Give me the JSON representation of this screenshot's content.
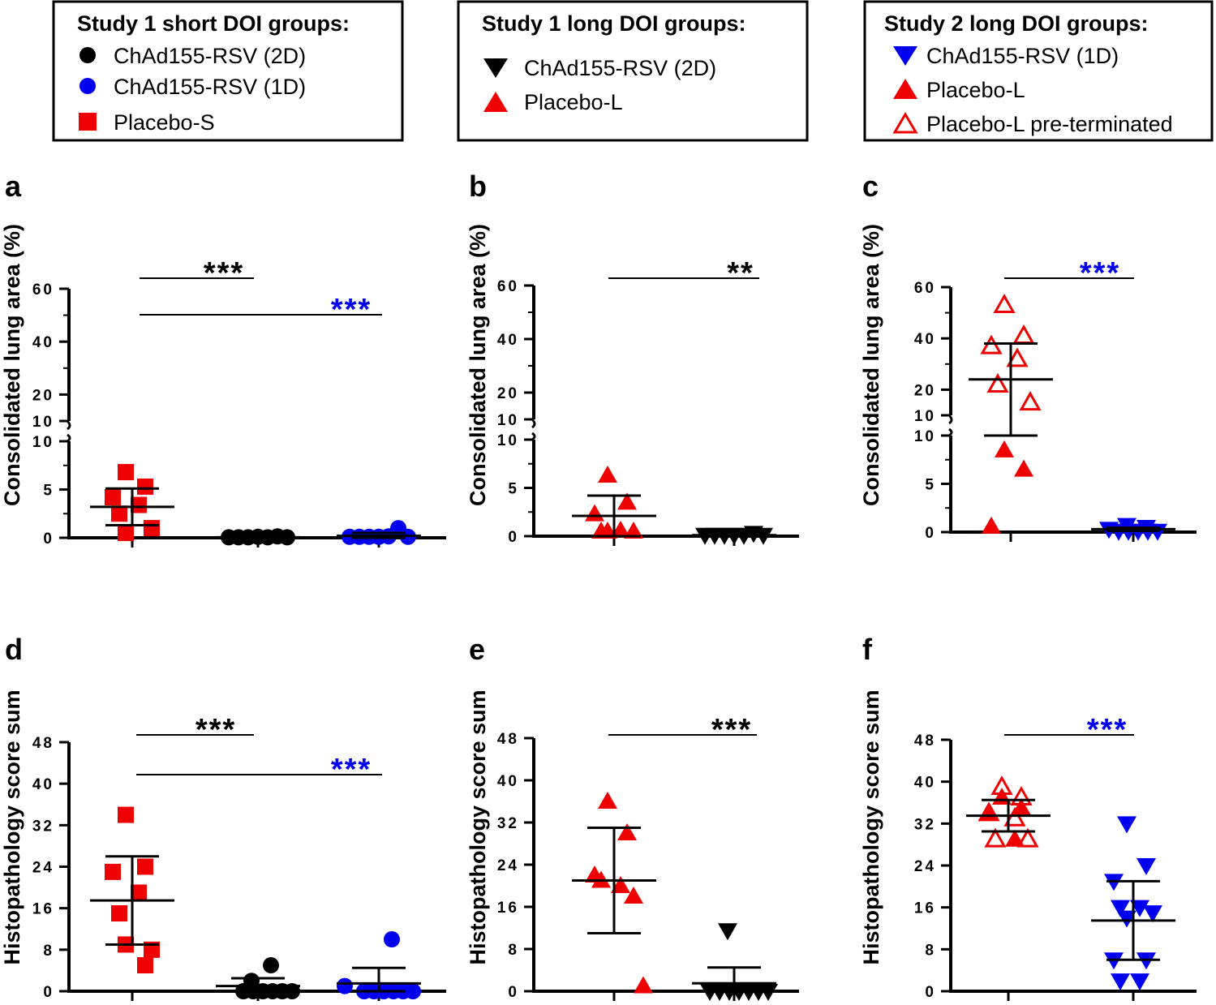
{
  "colors": {
    "red": "#ee0000",
    "blue": "#0000ee",
    "black": "#000000"
  },
  "legends": [
    {
      "title": "Study 1 short DOI groups:",
      "items": [
        {
          "label": "ChAd155-RSV (2D)",
          "marker": "circle",
          "color": "#000000"
        },
        {
          "label": "ChAd155-RSV (1D)",
          "marker": "circle",
          "color": "#0000ee"
        },
        {
          "label": "Placebo-S",
          "marker": "square",
          "color": "#ee0000"
        }
      ]
    },
    {
      "title": "Study 1 long DOI groups:",
      "items": [
        {
          "label": "ChAd155-RSV (2D)",
          "marker": "triangle-down",
          "color": "#000000"
        },
        {
          "label": "Placebo-L",
          "marker": "triangle-up",
          "color": "#ee0000"
        }
      ]
    },
    {
      "title": "Study 2 long DOI groups:",
      "items": [
        {
          "label": "ChAd155-RSV (1D)",
          "marker": "triangle-down",
          "color": "#0000ee"
        },
        {
          "label": "Placebo-L",
          "marker": "triangle-up",
          "color": "#ee0000"
        },
        {
          "label": "Placebo-L pre-terminated",
          "marker": "triangle-up-open",
          "color": "#ee0000"
        }
      ]
    }
  ],
  "chart_data": [
    {
      "panel": "a",
      "type": "scatter",
      "ylabel": "Consolidated lung area (%)",
      "broken_axis": true,
      "lower_range": [
        0,
        10
      ],
      "upper_range": [
        10,
        60
      ],
      "lower_ticks": [
        "0",
        "5",
        "10"
      ],
      "upper_ticks": [
        "10",
        "20",
        "40",
        "60"
      ],
      "lower_tick_values": [
        0,
        5,
        10
      ],
      "upper_tick_values": [
        10,
        20,
        40,
        60
      ],
      "groups": [
        {
          "name": "Placebo-S",
          "marker": "square",
          "color": "#ee0000",
          "values": [
            6.8,
            5.3,
            4.2,
            3.4,
            2.5,
            1.0,
            0.5
          ],
          "mean": 3.2,
          "sd": 1.9
        },
        {
          "name": "ChAd155-RSV (2D)",
          "marker": "circle",
          "color": "#000000",
          "values": [
            0.05,
            0.05,
            0.05,
            0.1,
            0.05,
            0.15,
            0.05
          ],
          "mean": 0.05,
          "sd": 0.05
        },
        {
          "name": "ChAd155-RSV (1D)",
          "marker": "circle",
          "color": "#0000ee",
          "values": [
            0.1,
            0.1,
            0.1,
            0.1,
            0.15,
            1.0,
            0.1
          ],
          "mean": 0.2,
          "sd": 0.3
        }
      ],
      "significance": [
        {
          "from": 0,
          "to": 1,
          "label": "***",
          "color": "#000000"
        },
        {
          "from": 0,
          "to": 2,
          "label": "***",
          "color": "#0000ee"
        }
      ]
    },
    {
      "panel": "b",
      "type": "scatter",
      "ylabel": "Consolidated lung area (%)",
      "broken_axis": true,
      "lower_range": [
        0,
        10
      ],
      "upper_range": [
        10,
        60
      ],
      "lower_ticks": [
        "0",
        "5",
        "10"
      ],
      "upper_ticks": [
        "10",
        "20",
        "40",
        "60"
      ],
      "lower_tick_values": [
        0,
        5,
        10
      ],
      "upper_tick_values": [
        10,
        20,
        40,
        60
      ],
      "groups": [
        {
          "name": "Placebo-L",
          "marker": "triangle-up",
          "color": "#ee0000",
          "values": [
            6.3,
            3.5,
            2.3,
            0.6,
            0.5,
            0.5,
            0.5
          ],
          "mean": 2.1,
          "sd": 2.1
        },
        {
          "name": "ChAd155-RSV (2D)",
          "marker": "triangle-down",
          "color": "#000000",
          "values": [
            0.1,
            0.1,
            0.1,
            0.1,
            0.1,
            0.3,
            0.1
          ],
          "mean": 0.1,
          "sd": 0.1
        }
      ],
      "significance": [
        {
          "from": 0,
          "to": 1,
          "label": "**",
          "color": "#000000"
        }
      ]
    },
    {
      "panel": "c",
      "type": "scatter",
      "ylabel": "Consolidated lung area (%)",
      "broken_axis": true,
      "lower_range": [
        0,
        10
      ],
      "upper_range": [
        10,
        60
      ],
      "lower_ticks": [
        "0",
        "5",
        "10"
      ],
      "upper_ticks": [
        "10",
        "20",
        "40",
        "60"
      ],
      "lower_tick_values": [
        0,
        5,
        10
      ],
      "upper_tick_values": [
        10,
        20,
        40,
        60
      ],
      "groups": [
        {
          "name": "Placebo-L",
          "marker": "triangle-up",
          "color": "#ee0000",
          "values": [
            8.5,
            6.5,
            0.6
          ],
          "mean": null,
          "sd": null
        },
        {
          "name": "Placebo-L pre-terminated",
          "marker": "triangle-up-open",
          "color": "#ee0000",
          "values": [
            53,
            41,
            37,
            32,
            22,
            15
          ],
          "mean": 24,
          "sd": 14
        },
        {
          "name": "ChAd155-RSV (1D)",
          "marker": "triangle-down",
          "color": "#0000ee",
          "values": [
            0.7,
            0.3,
            0.1,
            0.1,
            0.1,
            0.1,
            0.1,
            0.5
          ],
          "mean": 0.3,
          "sd": 0.15
        }
      ],
      "significance": [
        {
          "from": 0,
          "to": 1,
          "label": "***",
          "color": "#0000ee"
        }
      ]
    },
    {
      "panel": "d",
      "type": "scatter",
      "ylabel": "Histopathology score sum",
      "broken_axis": false,
      "ylim": [
        0,
        48
      ],
      "ticks": [
        "0",
        "8",
        "16",
        "24",
        "32",
        "40",
        "48"
      ],
      "tick_values": [
        0,
        8,
        16,
        24,
        32,
        40,
        48
      ],
      "groups": [
        {
          "name": "Placebo-S",
          "marker": "square",
          "color": "#ee0000",
          "values": [
            34,
            24,
            23,
            19,
            15,
            8,
            9,
            5
          ],
          "mean": 17.5,
          "sd": 8.5
        },
        {
          "name": "ChAd155-RSV (2D)",
          "marker": "circle",
          "color": "#000000",
          "values": [
            2,
            5,
            0,
            0,
            0,
            0,
            0,
            0
          ],
          "mean": 1,
          "sd": 1.5
        },
        {
          "name": "ChAd155-RSV (1D)",
          "marker": "circle",
          "color": "#0000ee",
          "values": [
            1,
            10,
            0,
            0,
            0,
            0,
            0,
            0
          ],
          "mean": 1.5,
          "sd": 3
        },
        {
          "name": "",
          "marker": "none",
          "color": "#000000",
          "values": [],
          "mean": null,
          "sd": null
        }
      ],
      "significance": [
        {
          "from": 0,
          "to": 1,
          "label": "***",
          "color": "#000000"
        },
        {
          "from": 0,
          "to": 2,
          "label": "***",
          "color": "#0000ee"
        }
      ]
    },
    {
      "panel": "e",
      "type": "scatter",
      "ylabel": "Histopathology score sum",
      "broken_axis": false,
      "ylim": [
        0,
        48
      ],
      "ticks": [
        "0",
        "8",
        "16",
        "24",
        "32",
        "40",
        "48"
      ],
      "tick_values": [
        0,
        8,
        16,
        24,
        32,
        40,
        48
      ],
      "groups": [
        {
          "name": "Placebo-L",
          "marker": "triangle-up",
          "color": "#ee0000",
          "values": [
            36,
            30,
            22,
            20,
            21,
            18,
            1
          ],
          "mean": 21,
          "sd": 10
        },
        {
          "name": "ChAd155-RSV (2D)",
          "marker": "triangle-down",
          "color": "#000000",
          "values": [
            11.5,
            0,
            0,
            0,
            0,
            0,
            0,
            0
          ],
          "mean": 1.5,
          "sd": 3
        },
        {
          "name": "",
          "marker": "none",
          "color": "#000000",
          "values": [],
          "mean": null,
          "sd": null
        }
      ],
      "significance": [
        {
          "from": 0,
          "to": 1,
          "label": "***",
          "color": "#000000"
        }
      ]
    },
    {
      "panel": "f",
      "type": "scatter",
      "ylabel": "Histopathology score sum",
      "broken_axis": false,
      "ylim": [
        0,
        48
      ],
      "ticks": [
        "0",
        "8",
        "16",
        "24",
        "32",
        "40",
        "48"
      ],
      "tick_values": [
        0,
        8,
        16,
        24,
        32,
        40,
        48
      ],
      "groups": [
        {
          "name": "Placebo-L",
          "marker": "triangle-up",
          "color": "#ee0000",
          "values": [
            37,
            35,
            34,
            29
          ],
          "mean": null,
          "sd": null
        },
        {
          "name": "Placebo-L pre-terminated",
          "marker": "triangle-up-open",
          "color": "#ee0000",
          "values": [
            39,
            37,
            34,
            33,
            29,
            29
          ],
          "mean": 33.5,
          "sd": 3
        },
        {
          "name": "ChAd155-RSV (1D)",
          "marker": "triangle-down",
          "color": "#0000ee",
          "values": [
            32,
            24,
            21,
            16,
            16,
            15,
            14,
            6,
            6,
            2,
            2
          ],
          "mean": 13.5,
          "sd": 7.5
        }
      ],
      "significance": [
        {
          "from": 0,
          "to": 1,
          "label": "***",
          "color": "#0000ee"
        }
      ]
    }
  ]
}
